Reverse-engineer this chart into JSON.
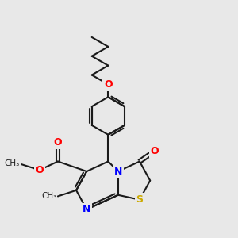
{
  "bg_color": "#e8e8e8",
  "bond_color": "#1a1a1a",
  "bond_width": 1.5,
  "atom_colors": {
    "O": "#ff0000",
    "N": "#0000ff",
    "S": "#ccaa00",
    "C": "#1a1a1a"
  },
  "font_size_atom": 9,
  "font_size_small": 7.5,
  "xlim": [
    -2.5,
    5.0
  ],
  "ylim": [
    -0.5,
    8.5
  ]
}
